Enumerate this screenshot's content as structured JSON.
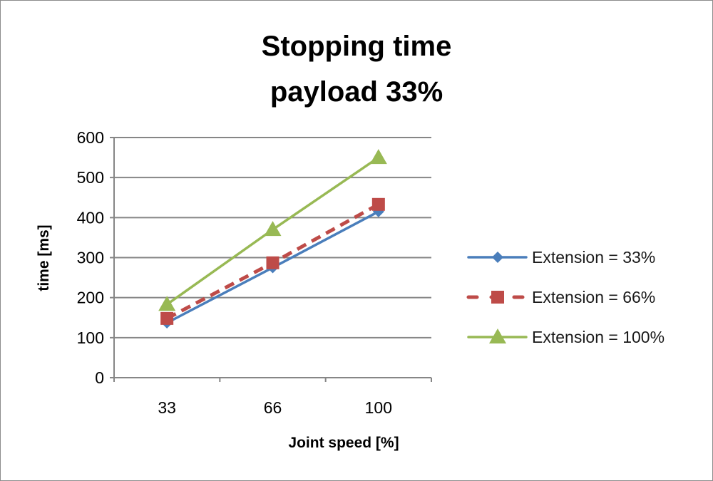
{
  "chart_data": {
    "type": "line",
    "title": [
      "Stopping time",
      "payload 33%"
    ],
    "xlabel": "Joint speed [%]",
    "ylabel": "time [ms]",
    "categories": [
      "33",
      "66",
      "100"
    ],
    "ylim": [
      0,
      600
    ],
    "yticks": [
      "0",
      "100",
      "200",
      "300",
      "400",
      "500",
      "600"
    ],
    "grid": true,
    "legend_position": "right",
    "series": [
      {
        "name": "Extension = 33%",
        "values": [
          137,
          275,
          415
        ],
        "color": "#4a7ebb",
        "marker": "diamond",
        "dash": false
      },
      {
        "name": "Extension = 66%",
        "values": [
          148,
          287,
          433
        ],
        "color": "#be4b48",
        "marker": "square",
        "dash": true
      },
      {
        "name": "Extension = 100%",
        "values": [
          183,
          370,
          550
        ],
        "color": "#98b954",
        "marker": "triangle",
        "dash": false
      }
    ]
  }
}
